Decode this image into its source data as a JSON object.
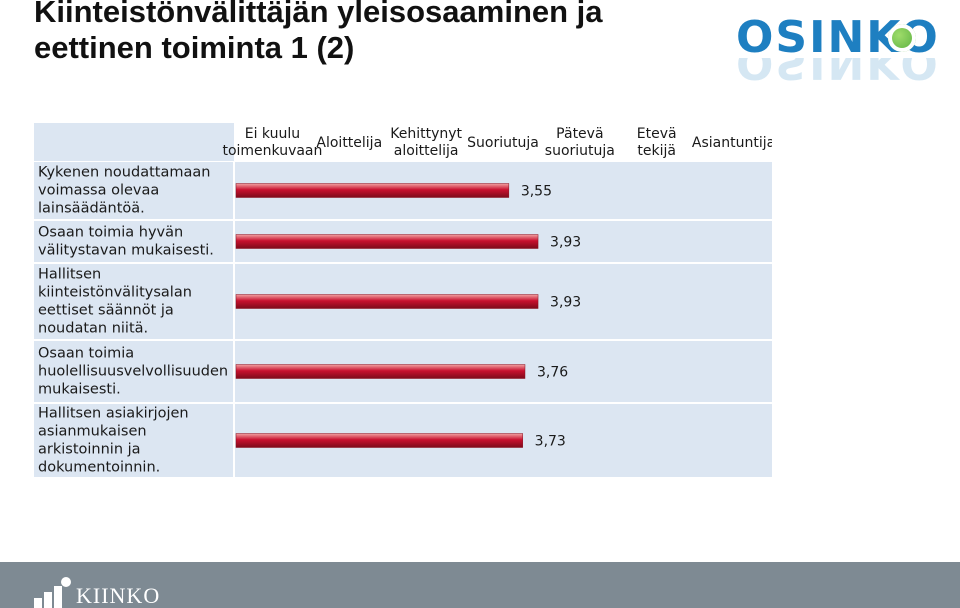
{
  "slide": {
    "title_line1": "Kiinteistönvälittäjän yleisosaaminen ja",
    "title_line2": "eettinen toiminta 1 (2)"
  },
  "logo": {
    "text": "OSINKO",
    "accent": "#1e7fc1",
    "dot_color": "#4fa83a"
  },
  "footer": {
    "brand": "KIINKO",
    "background": "#7e8a93"
  },
  "colors": {
    "bar": "#c8102e",
    "row_bg": "#dce6f2",
    "header_bg": "#ffffff"
  },
  "chart_data": {
    "type": "bar",
    "orientation": "horizontal",
    "scale_labels": [
      [
        "Ei kuulu",
        "toimenkuvaan"
      ],
      [
        "Aloittelija"
      ],
      [
        "Kehittynyt",
        "aloittelija"
      ],
      [
        "Suoriutuja"
      ],
      [
        "Pätevä",
        "suoriutuja"
      ],
      [
        "Etevä",
        "tekijä"
      ],
      [
        "Asiantuntija"
      ]
    ],
    "categories": [
      [
        "Kykenen noudattamaan",
        "voimassa olevaa",
        "lainsäädäntöä."
      ],
      [
        "Osaan toimia hyvän",
        "välitystavan mukaisesti."
      ],
      [
        "Hallitsen",
        "kiinteistönvälitysalan",
        "eettiset säännöt ja",
        "noudatan niitä."
      ],
      [
        "Osaan toimia",
        "huolellisuusvelvollisuuden",
        "mukaisesti."
      ],
      [
        "Hallitsen asiakirjojen",
        "asianmukaisen",
        "arkistoinnin ja",
        "dokumentoinnin."
      ]
    ],
    "values": [
      3.55,
      3.93,
      3.93,
      3.76,
      3.73
    ],
    "value_labels": [
      "3,55",
      "3,93",
      "3,93",
      "3,76",
      "3,73"
    ],
    "xlim": [
      0,
      7
    ]
  }
}
